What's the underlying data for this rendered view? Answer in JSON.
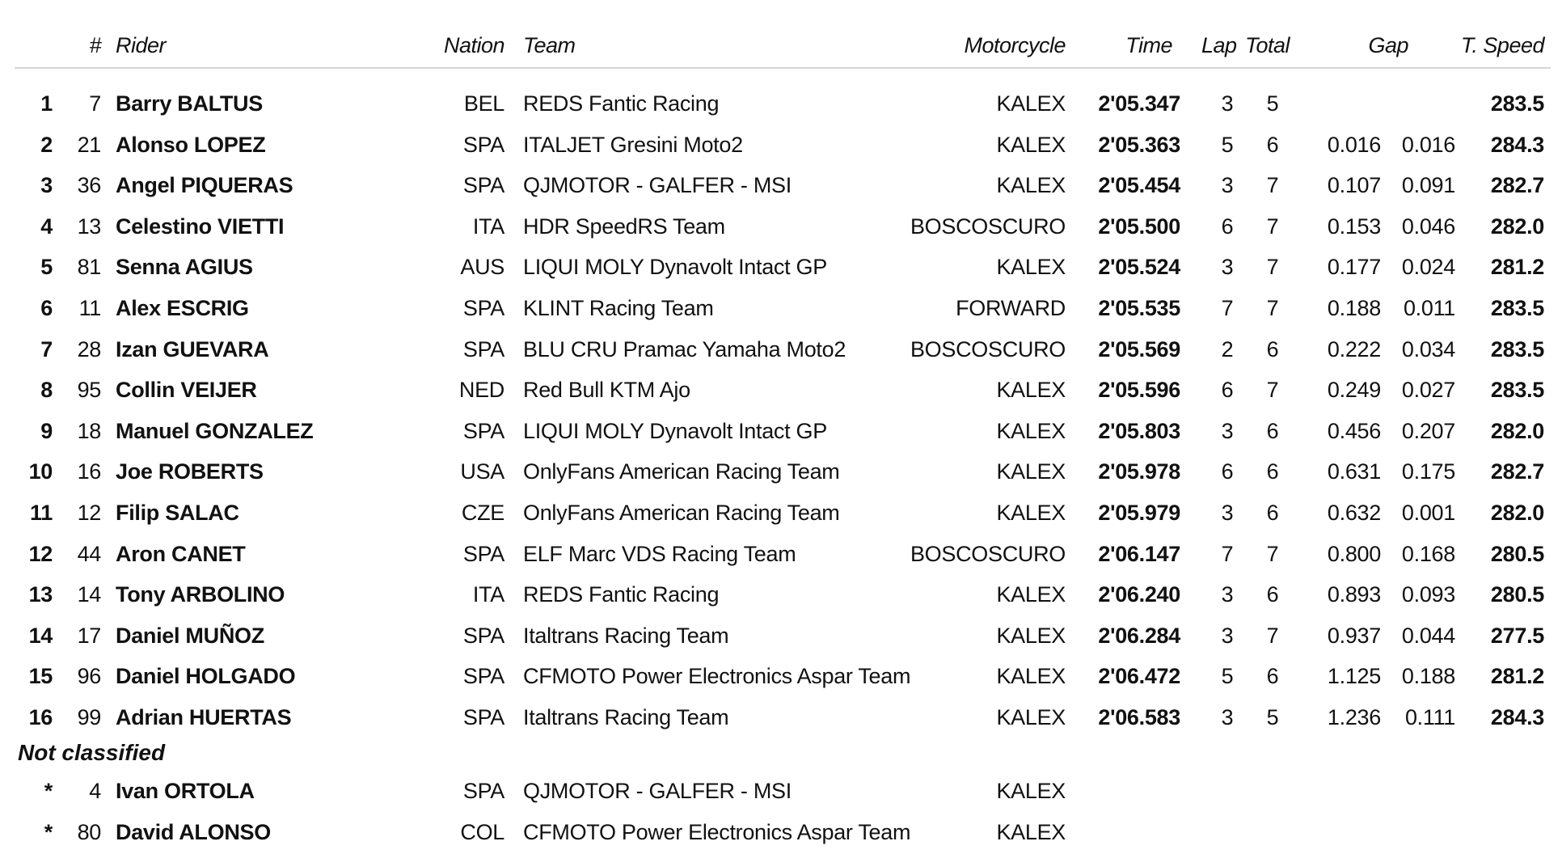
{
  "headers": {
    "num": "#",
    "rider": "Rider",
    "nation": "Nation",
    "team": "Team",
    "motorcycle": "Motorcycle",
    "time": "Time",
    "lap": "Lap",
    "total": "Total",
    "gap": "Gap",
    "speed": "T. Speed"
  },
  "classified": [
    {
      "pos": "1",
      "num": "7",
      "rider": "Barry BALTUS",
      "nation": "BEL",
      "team": "REDS Fantic Racing",
      "moto": "KALEX",
      "time": "2'05.347",
      "lap": "3",
      "total": "5",
      "gap1": "",
      "gap2": "",
      "speed": "283.5"
    },
    {
      "pos": "2",
      "num": "21",
      "rider": "Alonso LOPEZ",
      "nation": "SPA",
      "team": "ITALJET Gresini Moto2",
      "moto": "KALEX",
      "time": "2'05.363",
      "lap": "5",
      "total": "6",
      "gap1": "0.016",
      "gap2": "0.016",
      "speed": "284.3"
    },
    {
      "pos": "3",
      "num": "36",
      "rider": "Angel PIQUERAS",
      "nation": "SPA",
      "team": "QJMOTOR - GALFER - MSI",
      "moto": "KALEX",
      "time": "2'05.454",
      "lap": "3",
      "total": "7",
      "gap1": "0.107",
      "gap2": "0.091",
      "speed": "282.7"
    },
    {
      "pos": "4",
      "num": "13",
      "rider": "Celestino VIETTI",
      "nation": "ITA",
      "team": "HDR SpeedRS Team",
      "moto": "BOSCOSCURO",
      "time": "2'05.500",
      "lap": "6",
      "total": "7",
      "gap1": "0.153",
      "gap2": "0.046",
      "speed": "282.0"
    },
    {
      "pos": "5",
      "num": "81",
      "rider": "Senna AGIUS",
      "nation": "AUS",
      "team": "LIQUI MOLY Dynavolt Intact GP",
      "moto": "KALEX",
      "time": "2'05.524",
      "lap": "3",
      "total": "7",
      "gap1": "0.177",
      "gap2": "0.024",
      "speed": "281.2"
    },
    {
      "pos": "6",
      "num": "11",
      "rider": "Alex ESCRIG",
      "nation": "SPA",
      "team": "KLINT Racing Team",
      "moto": "FORWARD",
      "time": "2'05.535",
      "lap": "7",
      "total": "7",
      "gap1": "0.188",
      "gap2": "0.011",
      "speed": "283.5"
    },
    {
      "pos": "7",
      "num": "28",
      "rider": "Izan GUEVARA",
      "nation": "SPA",
      "team": "BLU CRU Pramac Yamaha Moto2",
      "moto": "BOSCOSCURO",
      "time": "2'05.569",
      "lap": "2",
      "total": "6",
      "gap1": "0.222",
      "gap2": "0.034",
      "speed": "283.5"
    },
    {
      "pos": "8",
      "num": "95",
      "rider": "Collin VEIJER",
      "nation": "NED",
      "team": "Red Bull KTM Ajo",
      "moto": "KALEX",
      "time": "2'05.596",
      "lap": "6",
      "total": "7",
      "gap1": "0.249",
      "gap2": "0.027",
      "speed": "283.5"
    },
    {
      "pos": "9",
      "num": "18",
      "rider": "Manuel GONZALEZ",
      "nation": "SPA",
      "team": "LIQUI MOLY Dynavolt Intact GP",
      "moto": "KALEX",
      "time": "2'05.803",
      "lap": "3",
      "total": "6",
      "gap1": "0.456",
      "gap2": "0.207",
      "speed": "282.0"
    },
    {
      "pos": "10",
      "num": "16",
      "rider": "Joe ROBERTS",
      "nation": "USA",
      "team": "OnlyFans American Racing Team",
      "moto": "KALEX",
      "time": "2'05.978",
      "lap": "6",
      "total": "6",
      "gap1": "0.631",
      "gap2": "0.175",
      "speed": "282.7"
    },
    {
      "pos": "11",
      "num": "12",
      "rider": "Filip SALAC",
      "nation": "CZE",
      "team": "OnlyFans American Racing Team",
      "moto": "KALEX",
      "time": "2'05.979",
      "lap": "3",
      "total": "6",
      "gap1": "0.632",
      "gap2": "0.001",
      "speed": "282.0"
    },
    {
      "pos": "12",
      "num": "44",
      "rider": "Aron CANET",
      "nation": "SPA",
      "team": "ELF Marc VDS Racing Team",
      "moto": "BOSCOSCURO",
      "time": "2'06.147",
      "lap": "7",
      "total": "7",
      "gap1": "0.800",
      "gap2": "0.168",
      "speed": "280.5"
    },
    {
      "pos": "13",
      "num": "14",
      "rider": "Tony ARBOLINO",
      "nation": "ITA",
      "team": "REDS Fantic Racing",
      "moto": "KALEX",
      "time": "2'06.240",
      "lap": "3",
      "total": "6",
      "gap1": "0.893",
      "gap2": "0.093",
      "speed": "280.5"
    },
    {
      "pos": "14",
      "num": "17",
      "rider": "Daniel MUÑOZ",
      "nation": "SPA",
      "team": "Italtrans Racing Team",
      "moto": "KALEX",
      "time": "2'06.284",
      "lap": "3",
      "total": "7",
      "gap1": "0.937",
      "gap2": "0.044",
      "speed": "277.5"
    },
    {
      "pos": "15",
      "num": "96",
      "rider": "Daniel HOLGADO",
      "nation": "SPA",
      "team": "CFMOTO Power Electronics Aspar Team",
      "moto": "KALEX",
      "time": "2'06.472",
      "lap": "5",
      "total": "6",
      "gap1": "1.125",
      "gap2": "0.188",
      "speed": "281.2"
    },
    {
      "pos": "16",
      "num": "99",
      "rider": "Adrian HUERTAS",
      "nation": "SPA",
      "team": "Italtrans Racing Team",
      "moto": "KALEX",
      "time": "2'06.583",
      "lap": "3",
      "total": "5",
      "gap1": "1.236",
      "gap2": "0.111",
      "speed": "284.3"
    }
  ],
  "not_classified_label": "Not classified",
  "not_classified": [
    {
      "pos": "*",
      "num": "4",
      "rider": "Ivan ORTOLA",
      "nation": "SPA",
      "team": "QJMOTOR - GALFER - MSI",
      "moto": "KALEX"
    },
    {
      "pos": "*",
      "num": "80",
      "rider": "David ALONSO",
      "nation": "COL",
      "team": "CFMOTO Power Electronics Aspar Team",
      "moto": "KALEX"
    }
  ]
}
